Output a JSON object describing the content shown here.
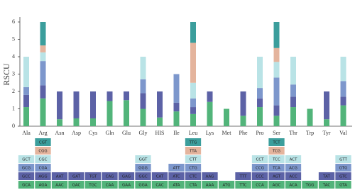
{
  "chart_data": {
    "type": "bar",
    "stacked": true,
    "y_label": "RSCU",
    "categories": [
      "Ala",
      "Arg",
      "Asn",
      "Asp",
      "Cys",
      "Gln",
      "Glu",
      "Gly",
      "HIS",
      "Ile",
      "Leu",
      "Lys",
      "Met",
      "Phe",
      "Pro",
      "Ser",
      "Thr",
      "Trp",
      "Tyr",
      "Val"
    ],
    "ylim": [
      0,
      6
    ],
    "yticks": [
      0,
      1,
      2,
      3,
      4,
      5,
      6
    ],
    "series": [
      {
        "color": "#52b47a",
        "values": [
          1.1,
          1.6,
          0.4,
          0.45,
          0.45,
          1.45,
          1.5,
          1.0,
          0.5,
          0.85,
          0.7,
          1.4,
          1,
          0.6,
          1.1,
          0.6,
          1.1,
          1,
          0.4,
          1.2
        ],
        "codons": [
          "GCA",
          "AGA",
          "AAC",
          "GAC",
          "TGC",
          "CAA",
          "GAA",
          "GGA",
          "CAC",
          "ATA",
          "CTA",
          "AAA",
          "ATG",
          "TTC",
          "CCA",
          "AGC",
          "ACA",
          "TGG",
          "TAC",
          "GTA"
        ]
      },
      {
        "color": "#5c62a6",
        "values": [
          0.7,
          0.75,
          1.6,
          1.55,
          1.55,
          0.55,
          0.5,
          0.9,
          1.5,
          0.5,
          0.4,
          0.6,
          null,
          1.4,
          0.5,
          0.6,
          0.6,
          null,
          1.6,
          0.5
        ],
        "codons": [
          "GCC",
          "AGG",
          "AAT",
          "GAT",
          "TGT",
          "CAG",
          "GAG",
          "GGC",
          "CAT",
          "ATC",
          "CTC",
          "AAG",
          null,
          "TTT",
          "CCC",
          "AGT",
          "ACC",
          null,
          "TAT",
          "GTC"
        ]
      },
      {
        "color": "#7d97cc",
        "values": [
          0.45,
          1.4,
          null,
          null,
          null,
          null,
          null,
          0.8,
          null,
          1.65,
          0.5,
          null,
          null,
          null,
          0.6,
          1.6,
          0.7,
          null,
          null,
          0.9
        ],
        "codons": [
          "GCG",
          "CGA",
          null,
          null,
          null,
          null,
          null,
          "GGG",
          null,
          "ATT",
          "CTG",
          null,
          null,
          null,
          "CCG",
          "TCA",
          "ACG",
          null,
          null,
          "GTG"
        ]
      },
      {
        "color": "#b9e3e6",
        "values": [
          1.75,
          0.5,
          null,
          null,
          null,
          null,
          null,
          1.3,
          null,
          null,
          0.9,
          null,
          null,
          null,
          1.8,
          0.9,
          1.6,
          null,
          null,
          1.4
        ],
        "codons": [
          "GCT",
          "CGC",
          null,
          null,
          null,
          null,
          null,
          "GGT",
          null,
          null,
          "CTT",
          null,
          null,
          null,
          "CCT",
          "TCC",
          "ACT",
          null,
          null,
          "GTT"
        ]
      },
      {
        "color": "#e4b49d",
        "values": [
          null,
          0.4,
          null,
          null,
          null,
          null,
          null,
          null,
          null,
          null,
          2.3,
          null,
          null,
          null,
          null,
          0.8,
          null,
          null,
          null,
          null
        ],
        "codons": [
          null,
          "CGG",
          null,
          null,
          null,
          null,
          null,
          null,
          null,
          null,
          "TTA",
          null,
          null,
          null,
          null,
          "TCG",
          null,
          null,
          null,
          null
        ]
      },
      {
        "color": "#3b9e9c",
        "values": [
          null,
          1.35,
          null,
          null,
          null,
          null,
          null,
          null,
          null,
          null,
          1.2,
          null,
          null,
          null,
          null,
          1.5,
          null,
          null,
          null,
          null
        ],
        "codons": [
          null,
          "CGT",
          null,
          null,
          null,
          null,
          null,
          null,
          null,
          null,
          "TTG",
          null,
          null,
          null,
          null,
          "TCT",
          null,
          null,
          null,
          null
        ]
      }
    ]
  }
}
